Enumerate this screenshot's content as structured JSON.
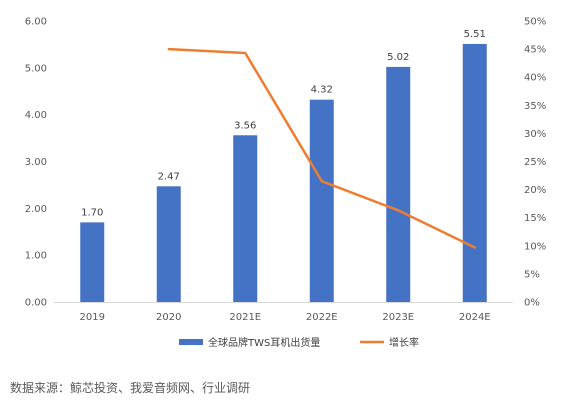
{
  "chart_data": {
    "type": "bar",
    "categories": [
      "2019",
      "2020",
      "2021E",
      "2022E",
      "2023E",
      "2024E"
    ],
    "series": [
      {
        "name": "全球品牌TWS耳机出货量",
        "type": "bar",
        "axis": "left",
        "color": "#4472C4",
        "values": [
          1.7,
          2.47,
          3.56,
          4.32,
          5.02,
          5.51
        ],
        "labels": [
          "1.70",
          "2.47",
          "3.56",
          "4.32",
          "5.02",
          "5.51"
        ]
      },
      {
        "name": "增长率",
        "type": "line",
        "axis": "right",
        "color": "#ED7D31",
        "values": [
          null,
          0.45,
          0.443,
          0.215,
          0.163,
          0.097
        ]
      }
    ],
    "y_left": {
      "min": 0,
      "max": 6,
      "step": 1,
      "tick_labels": [
        "0.00",
        "1.00",
        "2.00",
        "3.00",
        "4.00",
        "5.00",
        "6.00"
      ]
    },
    "y_right": {
      "min": 0,
      "max": 0.5,
      "step": 0.05,
      "tick_labels": [
        "0%",
        "5%",
        "10%",
        "15%",
        "20%",
        "25%",
        "30%",
        "35%",
        "40%",
        "45%",
        "50%"
      ]
    },
    "grid": false,
    "legend_position": "bottom"
  },
  "source_note": "数据来源：鲸芯投资、我爱音频网、行业调研"
}
